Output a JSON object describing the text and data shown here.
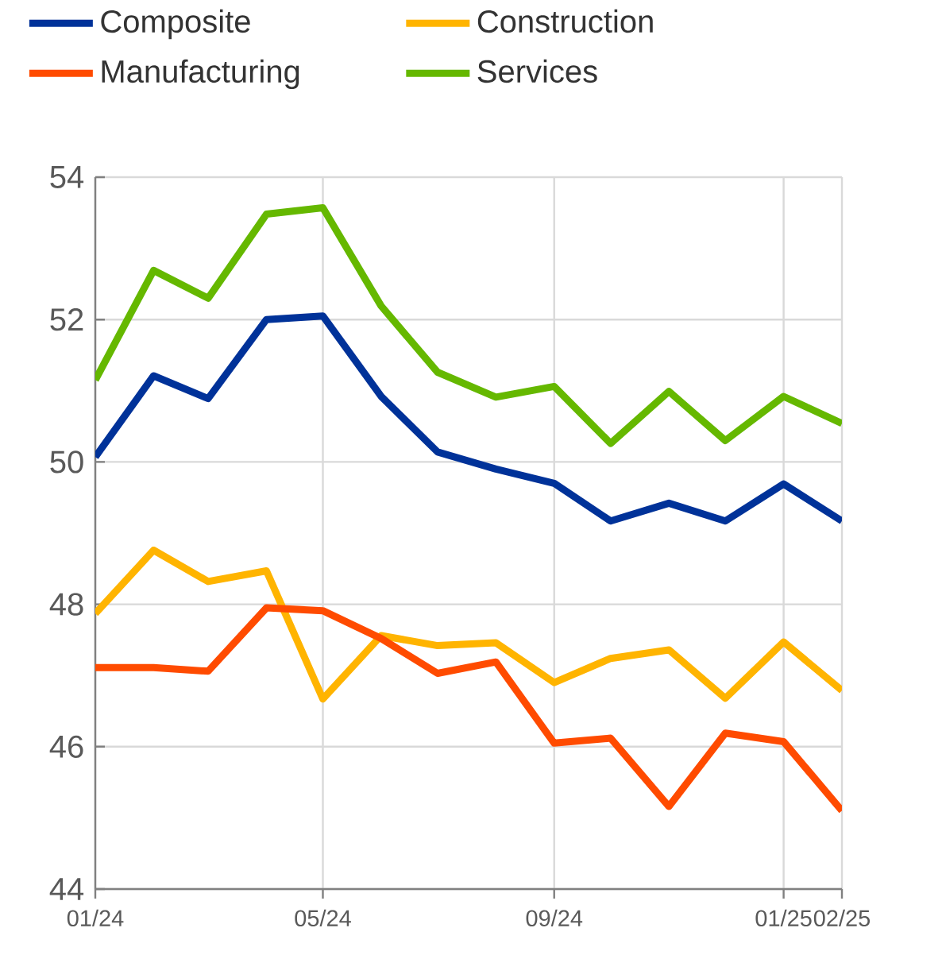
{
  "chart_data": {
    "type": "line",
    "x": [
      "2024-01",
      "2024-02",
      "2024-03",
      "2024-04",
      "2024-05",
      "2024-06",
      "2024-07",
      "2024-08",
      "2024-09",
      "2024-10",
      "2024-11",
      "2024-12",
      "2025-01",
      "2025-02"
    ],
    "series": [
      {
        "name": "Composite",
        "color": "#003299",
        "values": [
          50.07,
          51.21,
          50.89,
          52.0,
          52.05,
          50.92,
          50.14,
          49.9,
          49.7,
          49.17,
          49.42,
          49.17,
          49.69,
          49.17
        ]
      },
      {
        "name": "Construction",
        "color": "#ffb400",
        "values": [
          47.87,
          48.76,
          48.32,
          48.47,
          46.67,
          47.56,
          47.42,
          47.46,
          46.9,
          47.24,
          47.36,
          46.68,
          47.47,
          46.79
        ]
      },
      {
        "name": "Manufacturing",
        "color": "#ff4b00",
        "values": [
          47.11,
          47.11,
          47.06,
          47.95,
          47.91,
          47.52,
          47.03,
          47.19,
          46.05,
          46.12,
          45.16,
          46.19,
          46.07,
          45.1
        ]
      },
      {
        "name": "Services",
        "color": "#65b800",
        "values": [
          51.15,
          52.69,
          52.3,
          53.48,
          53.57,
          52.19,
          51.26,
          50.91,
          51.06,
          50.26,
          50.99,
          50.3,
          50.92,
          50.54
        ]
      }
    ],
    "xlim": [
      "2024-01",
      "2025-02"
    ],
    "xticks": [
      {
        "value": "2024-01",
        "label": "01/24"
      },
      {
        "value": "2024-05",
        "label": "05/24"
      },
      {
        "value": "2024-09",
        "label": "09/24"
      },
      {
        "value": "2025-01",
        "label": "01/25"
      },
      {
        "value": "2025-02",
        "label": "02/25"
      }
    ],
    "ylim": [
      44,
      54
    ],
    "yticks": [
      44,
      46,
      48,
      50,
      52,
      54
    ],
    "grid": true,
    "legend": "top",
    "marker": "none",
    "line_style": "solid"
  }
}
